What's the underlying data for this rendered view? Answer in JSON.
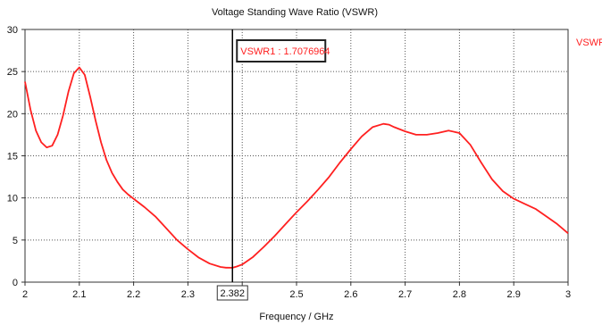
{
  "chart_data": {
    "type": "line",
    "title": "Voltage Standing Wave Ratio (VSWR)",
    "xlabel": "Frequency / GHz",
    "ylabel": "",
    "xlim": [
      2,
      3
    ],
    "ylim": [
      0,
      30
    ],
    "grid": true,
    "legend_position": "top-right",
    "x_ticks": [
      2,
      2.1,
      2.2,
      2.3,
      2.4,
      2.5,
      2.6,
      2.7,
      2.8,
      2.9,
      3
    ],
    "x_tick_labels": [
      "2",
      "2.1",
      "2.2",
      "2.3",
      "",
      "2.5",
      "2.6",
      "2.7",
      "2.8",
      "2.9",
      "3"
    ],
    "y_ticks": [
      0,
      5,
      10,
      15,
      20,
      25,
      30
    ],
    "y_tick_labels": [
      "0",
      "5",
      "10",
      "15",
      "20",
      "25",
      "30"
    ],
    "series": [
      {
        "name": "VSWR",
        "color": "#ff2020",
        "x": [
          2.0,
          2.01,
          2.02,
          2.03,
          2.04,
          2.05,
          2.06,
          2.07,
          2.08,
          2.09,
          2.1,
          2.11,
          2.12,
          2.13,
          2.14,
          2.15,
          2.16,
          2.17,
          2.18,
          2.19,
          2.2,
          2.22,
          2.24,
          2.26,
          2.28,
          2.3,
          2.32,
          2.34,
          2.36,
          2.37,
          2.382,
          2.39,
          2.4,
          2.42,
          2.44,
          2.46,
          2.48,
          2.5,
          2.52,
          2.54,
          2.56,
          2.58,
          2.6,
          2.62,
          2.64,
          2.66,
          2.67,
          2.68,
          2.7,
          2.72,
          2.74,
          2.76,
          2.78,
          2.8,
          2.82,
          2.84,
          2.86,
          2.88,
          2.9,
          2.92,
          2.94,
          2.96,
          2.98,
          3.0
        ],
        "y": [
          23.8,
          20.5,
          18.0,
          16.6,
          16.0,
          16.2,
          17.5,
          19.8,
          22.6,
          24.8,
          25.5,
          24.6,
          22.0,
          19.2,
          16.6,
          14.5,
          13.0,
          11.9,
          11.0,
          10.4,
          9.9,
          8.9,
          7.8,
          6.4,
          5.0,
          3.9,
          2.9,
          2.2,
          1.8,
          1.72,
          1.71,
          1.85,
          2.1,
          3.0,
          4.2,
          5.5,
          6.9,
          8.3,
          9.6,
          11.0,
          12.5,
          14.2,
          15.8,
          17.3,
          18.4,
          18.8,
          18.7,
          18.4,
          17.9,
          17.5,
          17.5,
          17.7,
          18.0,
          17.7,
          16.3,
          14.2,
          12.2,
          10.8,
          9.9,
          9.3,
          8.7,
          7.8,
          6.9,
          5.8
        ]
      }
    ],
    "marker": {
      "x": 2.382,
      "x_label": "2.382",
      "label": "VSWR1 : 1.7076964"
    }
  }
}
